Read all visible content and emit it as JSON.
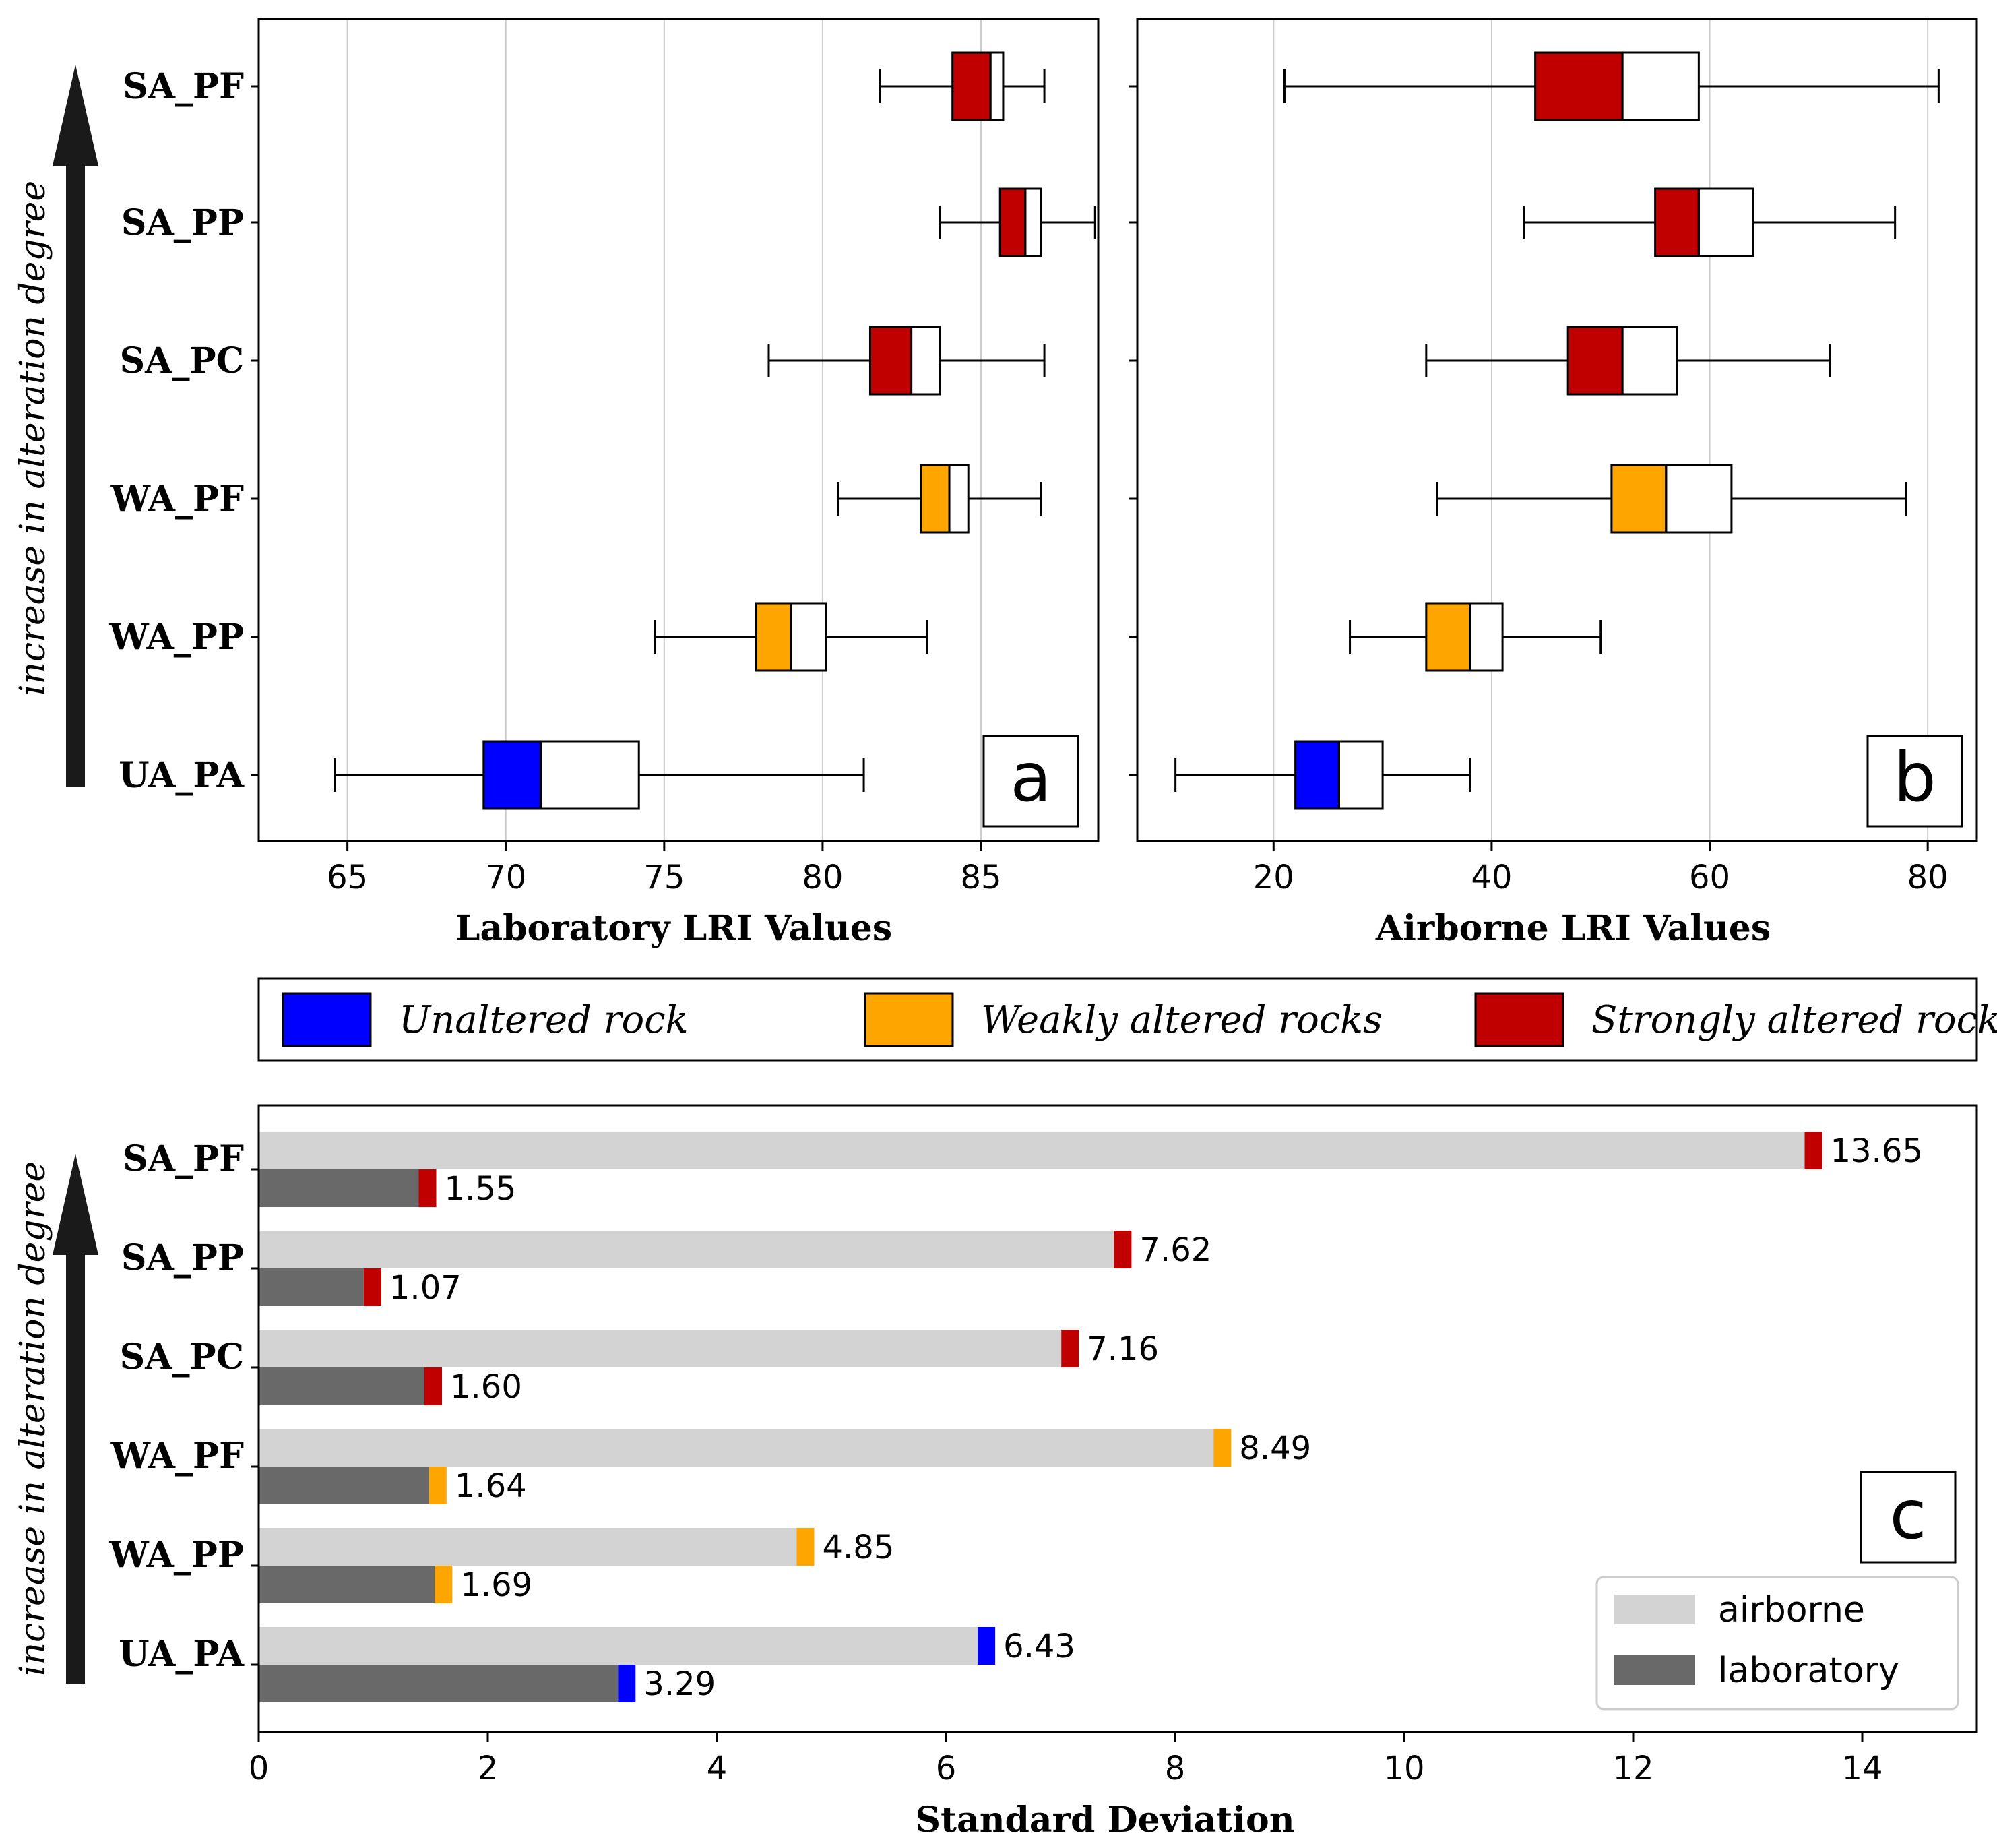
{
  "colors": {
    "unaltered": "#0000FF",
    "weakly": "#FFA500",
    "strongly": "#C00000",
    "airborne_bar": "#D3D3D3",
    "laboratory_bar": "#696969",
    "arrow": "#1a1a1a",
    "grid": "#cccccc"
  },
  "categories": [
    "UA_PA",
    "WA_PP",
    "WA_PF",
    "SA_PC",
    "SA_PP",
    "SA_PF"
  ],
  "category_groups": [
    "unaltered",
    "weakly",
    "weakly",
    "strongly",
    "strongly",
    "strongly"
  ],
  "arrow_label": "increase in alteration degree",
  "legend": {
    "items": [
      {
        "key": "unaltered",
        "label": "Unaltered rock"
      },
      {
        "key": "weakly",
        "label": "Weakly altered rocks"
      },
      {
        "key": "strongly",
        "label": "Strongly altered rocks"
      }
    ]
  },
  "chart_data": [
    {
      "panel": "a",
      "type": "boxplot",
      "xlabel": "Laboratory LRI Values",
      "xlim": [
        62.2,
        88.7
      ],
      "xticks": [
        65,
        70,
        75,
        80,
        85
      ],
      "grid": true,
      "stats": [
        {
          "category": "UA_PA",
          "whislo": 64.6,
          "q1": 69.3,
          "med": 71.1,
          "q3": 74.2,
          "whishi": 81.3
        },
        {
          "category": "WA_PP",
          "whislo": 74.7,
          "q1": 77.9,
          "med": 79.0,
          "q3": 80.1,
          "whishi": 83.3
        },
        {
          "category": "WA_PF",
          "whislo": 80.5,
          "q1": 83.1,
          "med": 84.0,
          "q3": 84.6,
          "whishi": 86.9
        },
        {
          "category": "SA_PC",
          "whislo": 78.3,
          "q1": 81.5,
          "med": 82.8,
          "q3": 83.7,
          "whishi": 87.0
        },
        {
          "category": "SA_PP",
          "whislo": 83.7,
          "q1": 85.6,
          "med": 86.4,
          "q3": 86.9,
          "whishi": 88.6
        },
        {
          "category": "SA_PF",
          "whislo": 81.8,
          "q1": 84.1,
          "med": 85.3,
          "q3": 85.7,
          "whishi": 87.0
        }
      ]
    },
    {
      "panel": "b",
      "type": "boxplot",
      "xlabel": "Airborne LRI Values",
      "xlim": [
        7.5,
        84.5
      ],
      "xticks": [
        20,
        40,
        60,
        80
      ],
      "grid": true,
      "stats": [
        {
          "category": "UA_PA",
          "whislo": 11,
          "q1": 22,
          "med": 26,
          "q3": 30,
          "whishi": 38
        },
        {
          "category": "WA_PP",
          "whislo": 27,
          "q1": 34,
          "med": 38,
          "q3": 41,
          "whishi": 50
        },
        {
          "category": "WA_PF",
          "whislo": 35,
          "q1": 51,
          "med": 56,
          "q3": 62,
          "whishi": 78
        },
        {
          "category": "SA_PC",
          "whislo": 34,
          "q1": 47,
          "med": 52,
          "q3": 57,
          "whishi": 71
        },
        {
          "category": "SA_PP",
          "whislo": 43,
          "q1": 55,
          "med": 59,
          "q3": 64,
          "whishi": 77
        },
        {
          "category": "SA_PF",
          "whislo": 21,
          "q1": 44,
          "med": 52,
          "q3": 59,
          "whishi": 81
        }
      ]
    },
    {
      "panel": "c",
      "type": "bar",
      "orientation": "horizontal",
      "xlabel": "Standard Deviation",
      "xlim": [
        0,
        15
      ],
      "xticks": [
        0,
        2,
        4,
        6,
        8,
        10,
        12,
        14
      ],
      "legend": [
        "airborne",
        "laboratory"
      ],
      "legend_position": "lower-right",
      "series": [
        {
          "name": "airborne",
          "values": [
            6.43,
            4.85,
            8.49,
            7.16,
            7.62,
            13.65
          ],
          "labels": [
            "6.43",
            "4.85",
            "8.49",
            "7.16",
            "7.62",
            "13.65"
          ]
        },
        {
          "name": "laboratory",
          "values": [
            3.29,
            1.69,
            1.64,
            1.6,
            1.07,
            1.55
          ],
          "labels": [
            "3.29",
            "1.69",
            "1.64",
            "1.60",
            "1.07",
            "1.55"
          ]
        }
      ]
    }
  ]
}
